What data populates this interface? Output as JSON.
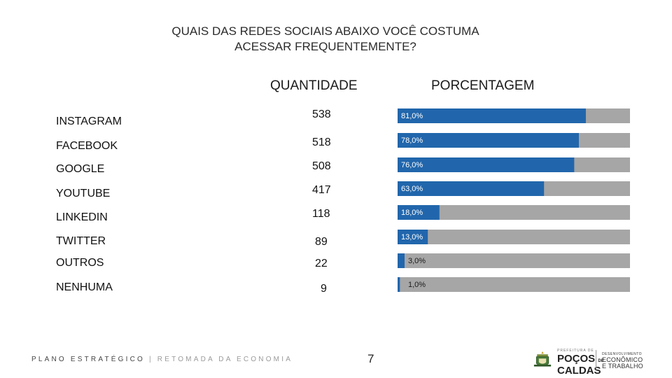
{
  "title_line1": "QUAIS DAS REDES SOCIAIS ABAIXO VOCÊ COSTUMA",
  "title_line2": "ACESSAR FREQUENTEMENTE?",
  "col_quantity": "QUANTIDADE",
  "col_percent": "PORCENTAGEM",
  "colors": {
    "bar": "#2166ac",
    "track": "#a6a6a6",
    "label_on_bar": "#ffffff",
    "label_off_bar": "#1a1a1a"
  },
  "chart_data": {
    "type": "bar",
    "orientation": "horizontal",
    "title": "QUAIS DAS REDES SOCIAIS ABAIXO VOCÊ COSTUMA ACESSAR FREQUENTEMENTE?",
    "categories": [
      "INSTAGRAM",
      "FACEBOOK",
      "GOOGLE",
      "YOUTUBE",
      "LINKEDIN",
      "TWITTER",
      "OUTROS",
      "NENHUMA"
    ],
    "quantities": [
      538,
      518,
      508,
      417,
      118,
      89,
      22,
      9
    ],
    "quantity_labels": [
      "538",
      "518",
      "508",
      "417",
      "118",
      "89",
      "22",
      "9"
    ],
    "values": [
      81,
      78,
      76,
      63,
      18,
      13,
      3,
      1
    ],
    "value_labels": [
      "81,0%",
      "78,0%",
      "76,0%",
      "63,0%",
      "18,0%",
      "13,0%",
      "3,0%",
      "1,0%"
    ],
    "xlim": [
      0,
      100
    ],
    "unit": "%"
  },
  "footer": {
    "main": "PLANO ESTRATÉGICO",
    "divider": " | ",
    "sub": "RETOMADA DA ECONOMIA"
  },
  "page_number": "7",
  "logo": {
    "prefix": "PREFEITURA DE",
    "city_line1": "POÇOS",
    "city_de": "DE",
    "city_line2": "CALDAS",
    "dept_line1": "DESENVOLVIMENTO",
    "dept_line2": "ECONÔMICO",
    "dept_line3": "E TRABALHO",
    "crest_icon": "coat-of-arms-icon"
  }
}
